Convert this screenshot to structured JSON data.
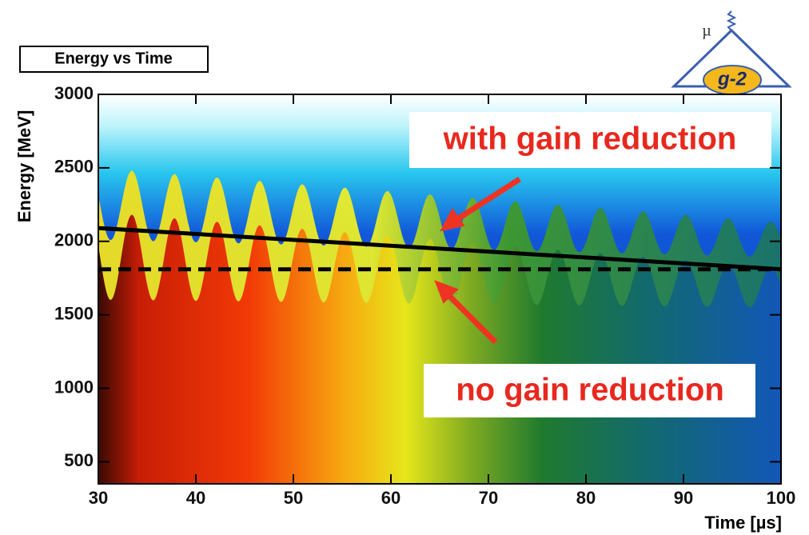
{
  "chart_data": {
    "type": "line",
    "title": "Energy vs Time",
    "x_label": "Time [µs]",
    "y_label": "Energy [MeV]",
    "x": [
      30,
      100
    ],
    "series": [
      {
        "color": "#000000",
        "values": [
          2090,
          1810
        ],
        "dashed": false
      },
      {
        "color": "#000000",
        "values": [
          1810,
          1810
        ],
        "dashed": true
      }
    ],
    "xlim": [
      30,
      100
    ],
    "xticks": [
      30,
      40,
      50,
      60,
      70,
      80,
      90,
      100
    ],
    "ylim": [
      350,
      3000
    ],
    "yticks": [
      500,
      1000,
      1500,
      2000,
      2500,
      3000
    ],
    "annotations": [
      "with gain reduction",
      "no gain reduction"
    ],
    "logo": {
      "symbol": "µ",
      "label": "g-2"
    }
  }
}
